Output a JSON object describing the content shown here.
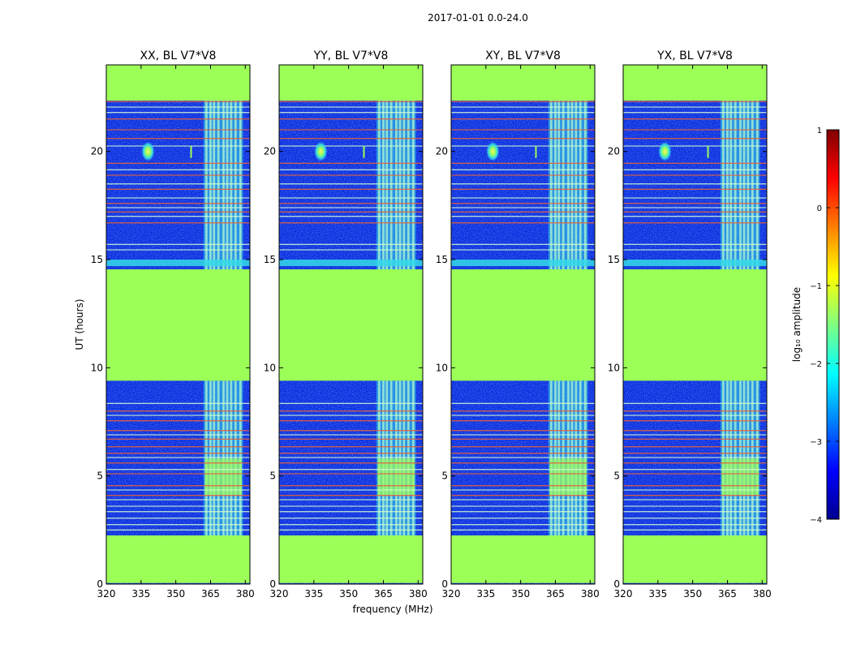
{
  "chart_data": {
    "type": "heatmap",
    "suptitle": "2017-01-01 0.0-24.0",
    "xlabel": "frequency (MHz)",
    "ylabel": "UT (hours)",
    "xlim": [
      320,
      382
    ],
    "ylim": [
      0,
      24
    ],
    "xticks": [
      320,
      335,
      350,
      365,
      380
    ],
    "yticks": [
      0,
      5,
      10,
      15,
      20
    ],
    "panels": [
      {
        "title": "XX, BL V7*V8"
      },
      {
        "title": "YY, BL V7*V8"
      },
      {
        "title": "XY, BL V7*V8"
      },
      {
        "title": "YX, BL V7*V8"
      }
    ],
    "flagged_hours": [
      [
        0.05,
        2.25
      ],
      [
        9.4,
        14.55
      ],
      [
        22.35,
        24.0
      ]
    ],
    "rfi_band_mhz": [
      362,
      379
    ],
    "source_blob": {
      "freq": 338,
      "hour": 20.0
    },
    "colorbar": {
      "label": "log₁₀ amplitude",
      "ticks": [
        1,
        0,
        -1,
        -2,
        -3,
        -4
      ],
      "tick_labels": [
        "1",
        "0",
        "−1",
        "−2",
        "−3",
        "−4"
      ],
      "range": [
        -4,
        1
      ]
    },
    "colors": {
      "background": "#0c2ee0",
      "flagged": "#9cff58",
      "rfi": "#35d9e8",
      "hot_line": "#e8603a"
    }
  }
}
